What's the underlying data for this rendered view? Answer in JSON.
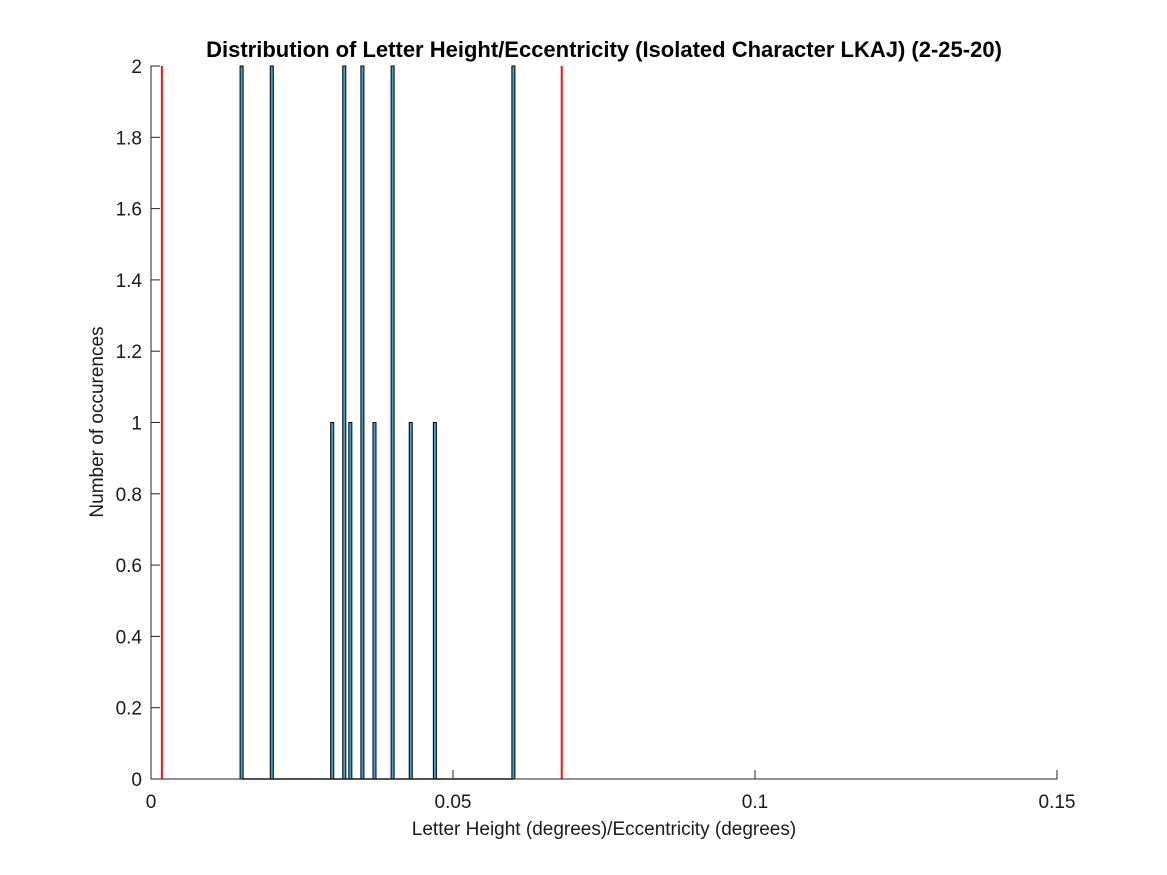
{
  "chart_data": {
    "type": "bar",
    "title": "Distribution of Letter Height/Eccentricity (Isolated Character LKAJ) (2-25-20)",
    "xlabel": "Letter Height (degrees)/Eccentricity (degrees)",
    "ylabel": "Number of occurences",
    "xlim": [
      0,
      0.15
    ],
    "ylim": [
      0,
      2
    ],
    "xticks": [
      "0",
      "0.05",
      "0.1",
      "0.15"
    ],
    "yticks": [
      "0",
      "0.2",
      "0.4",
      "0.6",
      "0.8",
      "1",
      "1.2",
      "1.4",
      "1.6",
      "1.8",
      "2"
    ],
    "bin_width": 0.0005,
    "bins": [
      {
        "x": 0.015,
        "count": 2
      },
      {
        "x": 0.02,
        "count": 2
      },
      {
        "x": 0.03,
        "count": 1
      },
      {
        "x": 0.032,
        "count": 2
      },
      {
        "x": 0.033,
        "count": 1
      },
      {
        "x": 0.035,
        "count": 2
      },
      {
        "x": 0.037,
        "count": 1
      },
      {
        "x": 0.04,
        "count": 2
      },
      {
        "x": 0.043,
        "count": 1
      },
      {
        "x": 0.047,
        "count": 1
      },
      {
        "x": 0.06,
        "count": 2
      }
    ],
    "reference_lines": [
      {
        "x": 0.0018
      },
      {
        "x": 0.068
      }
    ],
    "bar_fill": "#3f9fd8",
    "bar_edge": "#000000",
    "reference_line_color": "#e8141b",
    "grid": false
  }
}
